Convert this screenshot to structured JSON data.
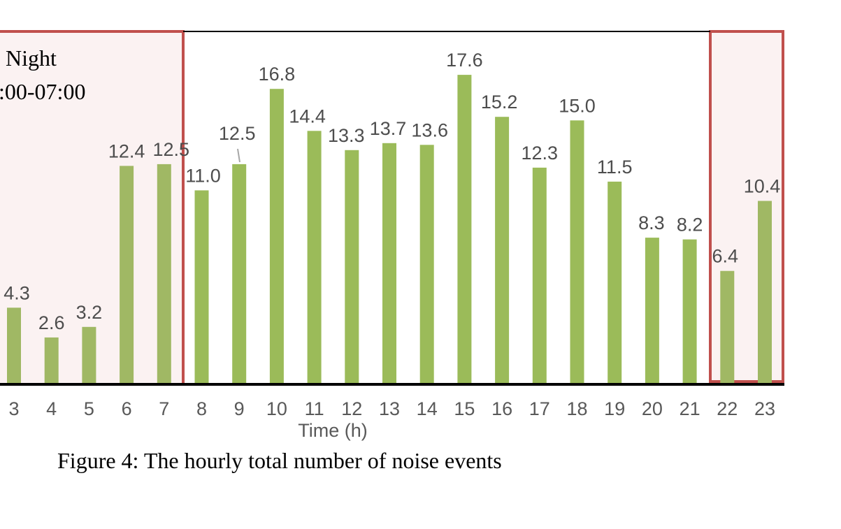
{
  "figure": {
    "caption": "Figure 4: The hourly total number of noise events"
  },
  "night_box": {
    "label": "Night",
    "range": ":00-07:00"
  },
  "colors": {
    "bar": "#9bbb59",
    "night_bar": "#a0b864",
    "highlight_border": "#c0504d",
    "highlight_fill": "#fbf2f2",
    "label": "#4d4d4d",
    "tick": "#595959"
  },
  "chart_data": {
    "type": "bar",
    "xlabel": "Time (h)",
    "ylabel": "",
    "ylim": [
      0,
      20
    ],
    "grid": false,
    "categories": [
      "3",
      "4",
      "5",
      "6",
      "7",
      "8",
      "9",
      "10",
      "11",
      "12",
      "13",
      "14",
      "15",
      "16",
      "17",
      "18",
      "19",
      "20",
      "21",
      "22",
      "23"
    ],
    "values": [
      4.3,
      2.6,
      3.2,
      12.4,
      12.5,
      11.0,
      12.5,
      16.8,
      14.4,
      13.3,
      13.7,
      13.6,
      17.6,
      15.2,
      12.3,
      15.0,
      11.5,
      8.3,
      8.2,
      6.4,
      10.4
    ],
    "labels": [
      "4.3",
      "2.6",
      "3.2",
      "12.4",
      "12.5",
      "11.0",
      "12.5",
      "16.8",
      "14.4",
      "13.3",
      "13.7",
      "13.6",
      "17.6",
      "15.2",
      "12.3",
      "15.0",
      "11.5",
      "8.3",
      "8.2",
      "6.4",
      "10.4"
    ],
    "highlighted_categories": [
      "3",
      "4",
      "5",
      "6",
      "7",
      "22",
      "23"
    ]
  }
}
